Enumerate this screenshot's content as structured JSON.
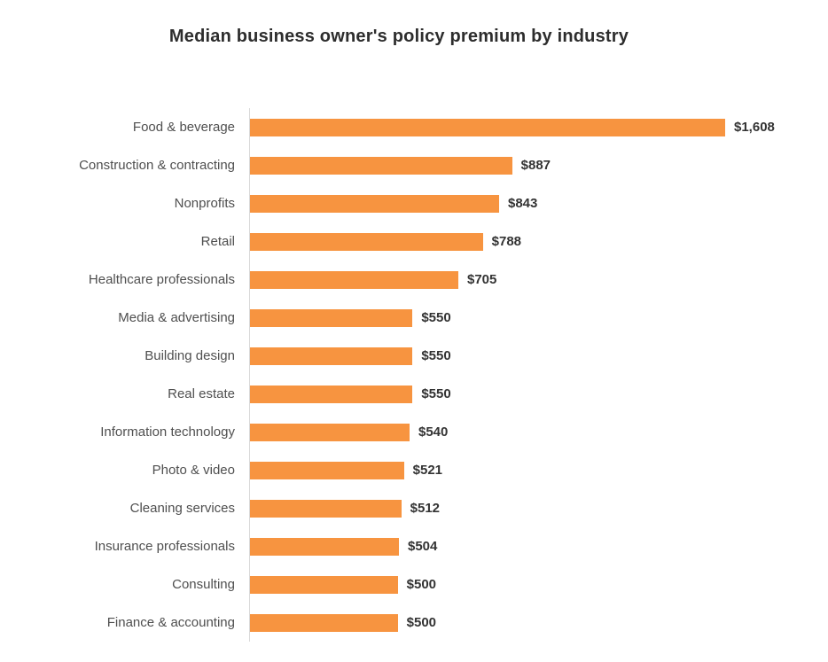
{
  "page": {
    "background": "#ffffff"
  },
  "chart_data": {
    "type": "bar",
    "orientation": "horizontal",
    "title": "Median business owner's policy premium by industry",
    "xlabel": "",
    "ylabel": "",
    "grid": false,
    "legend": false,
    "xlim": [
      0,
      1608
    ],
    "categories": [
      "Food & beverage",
      "Construction & contracting",
      "Nonprofits",
      "Retail",
      "Healthcare professionals",
      "Media & advertising",
      "Building design",
      "Real estate",
      "Information technology",
      "Photo & video",
      "Cleaning services",
      "Insurance professionals",
      "Consulting",
      "Finance & accounting"
    ],
    "values": [
      1608,
      887,
      843,
      788,
      705,
      550,
      550,
      550,
      540,
      521,
      512,
      504,
      500,
      500
    ],
    "value_labels": [
      "$1,608",
      "$887",
      "$843",
      "$788",
      "$705",
      "$550",
      "$550",
      "$550",
      "$540",
      "$521",
      "$512",
      "$504",
      "$500",
      "$500"
    ],
    "bar_color": "#f79440",
    "axis_line_color": "#d9d9d9",
    "title_color": "#2d2d2d",
    "category_label_color": "#4f4f4f",
    "value_label_color": "#333333"
  }
}
